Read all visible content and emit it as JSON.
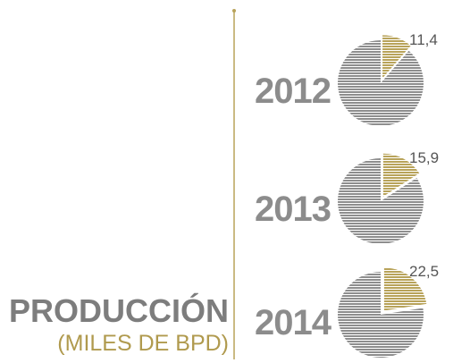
{
  "chart_data": {
    "type": "pie",
    "title": "PRODUCCIÓN",
    "subtitle": "(MILES DE BPD)",
    "categories": [
      "2012",
      "2013",
      "2014"
    ],
    "values": [
      11.4,
      15.9,
      22.5
    ],
    "value_labels": [
      "11,4",
      "15,9",
      "22,5"
    ],
    "color": "#b8a35a",
    "rest_color": "#8e8e8e"
  }
}
